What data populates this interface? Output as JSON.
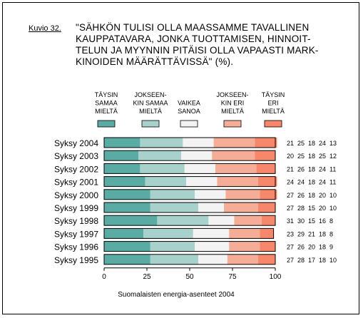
{
  "figure_label": "Kuvio 32.",
  "title": "\"SÄHKÖN TULISI OLLA MAASSAMME TAVALLINEN\nKAUPPATAVARA, JONKA TUOTTAMISEN, HINNOIT-\nTELUN JA MYYNNIN PITÄISI OLLA VAPAASTI MARK-\nKINOIDEN MÄÄRÄTTÄVISSÄ\" (%).",
  "chart_data": {
    "type": "bar",
    "orientation": "horizontal",
    "stacked": true,
    "categories": [
      "Syksy 2004",
      "Syksy 2003",
      "Syksy 2002",
      "Syksy 2001",
      "Syksy 2000",
      "Syksy 1999",
      "Syksy 1998",
      "Syksy 1997",
      "Syksy 1996",
      "Syksy 1995"
    ],
    "series": [
      {
        "name": [
          "TÄYSIN",
          "SAMAA",
          "MIELTÄ"
        ],
        "color": "#5aaba4",
        "values": [
          21,
          20,
          21,
          24,
          27,
          27,
          31,
          23,
          27,
          27
        ]
      },
      {
        "name": [
          "JOKSEEN-",
          "KIN SAMAA",
          "MIELTÄ"
        ],
        "color": "#a9d1cb",
        "values": [
          25,
          25,
          26,
          24,
          26,
          28,
          30,
          29,
          26,
          28
        ]
      },
      {
        "name": [
          "VAIKEA",
          "SANOA"
        ],
        "color": "#f3f3f3",
        "values": [
          18,
          18,
          18,
          18,
          18,
          15,
          15,
          21,
          20,
          17
        ]
      },
      {
        "name": [
          "JOKSEEN-",
          "KIN ERI",
          "MIELTÄ"
        ],
        "color": "#f6ad97",
        "values": [
          24,
          25,
          24,
          24,
          20,
          20,
          16,
          18,
          18,
          18
        ]
      },
      {
        "name": [
          "TÄYSIN",
          "ERI",
          "MIELTÄ"
        ],
        "color": "#f7876b",
        "values": [
          13,
          12,
          11,
          11,
          10,
          10,
          8,
          8,
          9,
          10
        ]
      }
    ],
    "xlim": [
      0,
      100
    ],
    "xticks": [
      0,
      25,
      50,
      75,
      100
    ],
    "xlabel": "Suomalaisten energia-asenteet 2004",
    "legend_position": "top",
    "value_labels": "right-of-bars"
  }
}
